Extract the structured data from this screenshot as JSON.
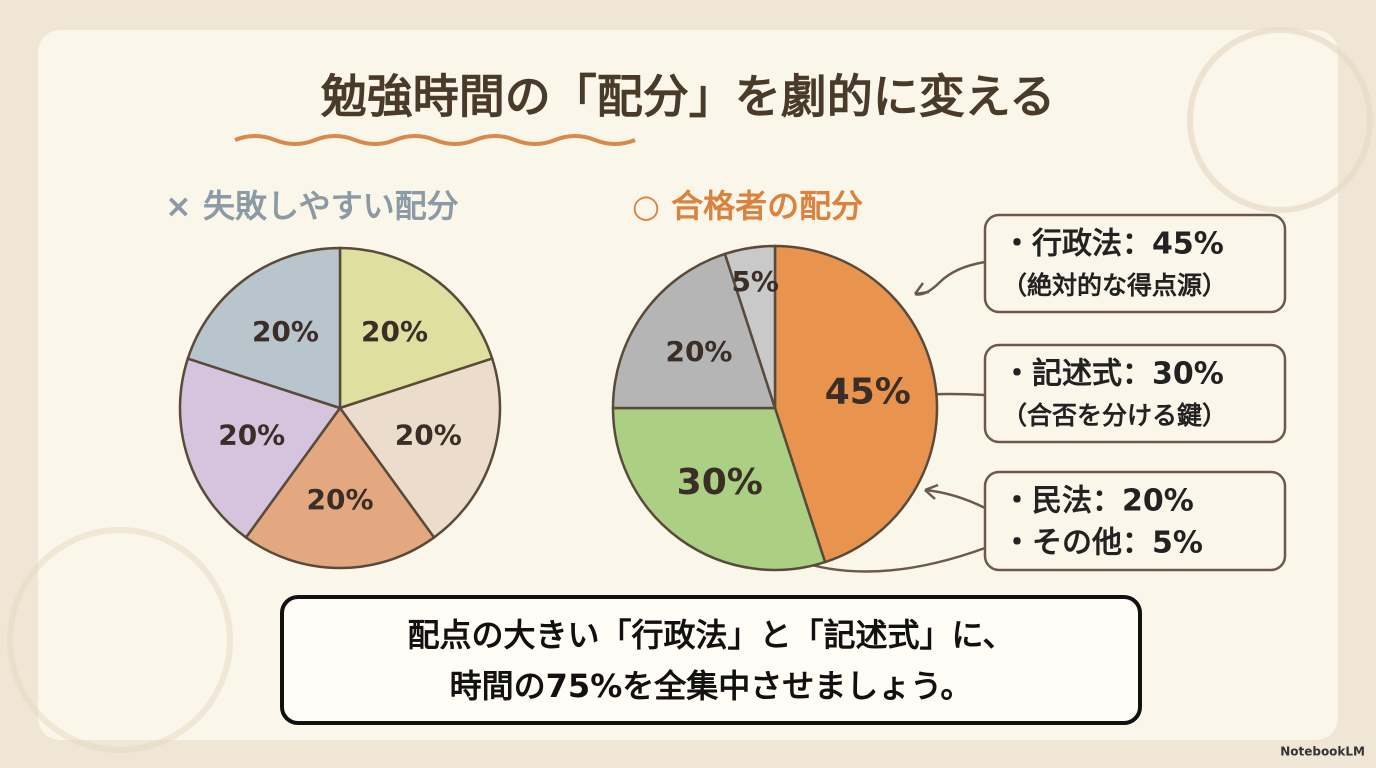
{
  "title": "勉強時間の「配分」を劇的に変える",
  "chart_data": [
    {
      "type": "pie",
      "title": "× 失敗しやすい配分",
      "values": [
        20,
        20,
        20,
        20,
        20
      ],
      "value_labels": [
        "20%",
        "20%",
        "20%",
        "20%",
        "20%"
      ],
      "colors": [
        "#dfe0a0",
        "#ecdccb",
        "#e4a880",
        "#d4c4de",
        "#b9c5cd"
      ]
    },
    {
      "type": "pie",
      "title": "○ 合格者の配分",
      "values": [
        45,
        30,
        20,
        5
      ],
      "value_labels": [
        "45%",
        "30%",
        "20%",
        "5%"
      ],
      "colors": [
        "#e8944f",
        "#abd083",
        "#b5b5b5",
        "#c9c9c9"
      ]
    }
  ],
  "callouts": [
    {
      "lines": [
        "・行政法：45%",
        "（絶対的な得点源）"
      ]
    },
    {
      "lines": [
        "・記述式：30%",
        "（合否を分ける鍵）"
      ]
    },
    {
      "lines": [
        "・民法：20%",
        "・その他：5%"
      ]
    }
  ],
  "message": [
    "配点の大きい「行政法」と「記述式」に、",
    "時間の75%を全集中させましょう。"
  ],
  "footer": "NotebookLM"
}
